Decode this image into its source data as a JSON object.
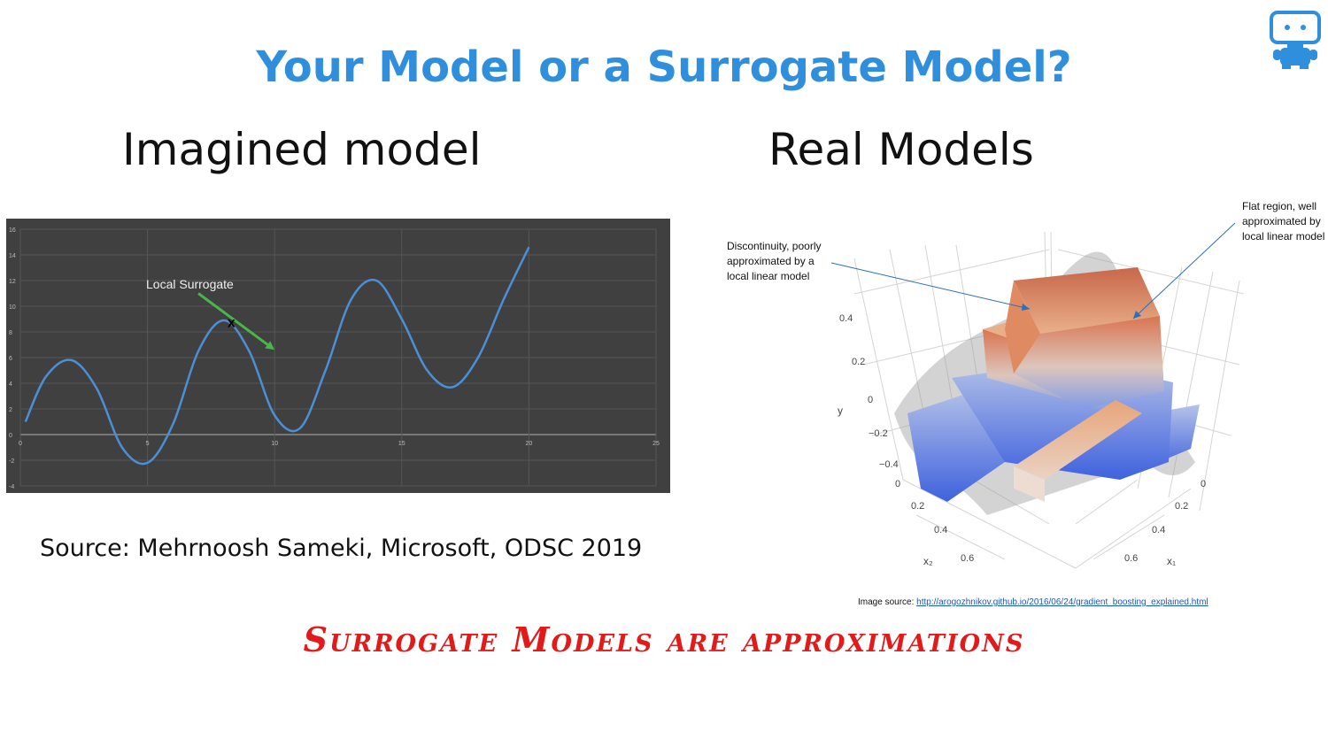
{
  "slide": {
    "title": "Your Model or a Surrogate Model?",
    "left_heading": "Imagined model",
    "right_heading": "Real Models",
    "left_source": "Source: Mehrnoosh Sameki, Microsoft, ODSC 2019",
    "image_source_label": "Image source: ",
    "image_source_url": "http://arogozhnikov.github.io/2016/06/24/gradient_boosting_explained.html",
    "tagline": "Surrogate Models are approximations",
    "logo_icon": "robot-icon",
    "accent_color": "#2f8fdc",
    "tagline_color": "#e21a1a"
  },
  "chart_data": [
    {
      "type": "line",
      "x_ticks": [
        "0",
        "5",
        "10",
        "15",
        "20",
        "25"
      ],
      "y_ticks": [
        "-4",
        "-2",
        "0",
        "2",
        "4",
        "6",
        "8",
        "10",
        "12",
        "14",
        "16"
      ],
      "xlim": [
        0,
        25
      ],
      "ylim": [
        -4,
        16
      ],
      "series": [
        {
          "x": [
            0.2,
            1.0,
            2.0,
            3.0,
            4.0,
            5.0,
            6.0,
            7.0,
            8.0,
            9.0,
            10.0,
            11.0,
            12.0,
            13.0,
            14.0,
            15.0,
            16.0,
            17.0,
            18.0,
            19.0,
            20.0
          ],
          "values": [
            1.0,
            4.5,
            5.8,
            3.6,
            -1.0,
            -2.2,
            0.8,
            6.5,
            8.9,
            6.5,
            1.5,
            0.5,
            5.0,
            10.5,
            12.0,
            9.0,
            5.0,
            3.7,
            6.0,
            10.5,
            14.6
          ]
        }
      ],
      "annotation": "Local Surrogate",
      "marker": {
        "x": 8.3,
        "y": 8.8,
        "label": "x"
      },
      "surrogate_arrow": {
        "from": [
          7.0,
          11.0
        ],
        "to": [
          10.0,
          6.6
        ],
        "color": "#49b54a"
      },
      "grid": true,
      "background": "#404040",
      "line_color": "#4b8fd6"
    },
    {
      "type": "surface-3d",
      "z_axis_label": "y",
      "z_ticks": [
        "0.4",
        "0.2",
        "0",
        "−0.2",
        "−0.4"
      ],
      "x1_axis_label": "x₁",
      "x1_ticks": [
        "0",
        "0.2",
        "0.4",
        "0.6"
      ],
      "x2_axis_label": "x₂",
      "x2_ticks": [
        "0",
        "0.2",
        "0.4",
        "0.6"
      ],
      "annotations": [
        "Discontinuity, poorly approximated by a local linear model",
        "Flat region, well approximated by local linear model"
      ],
      "colors": {
        "high": "#d86a4a",
        "mid": "#e8a57a",
        "low": "#4a6ee0",
        "surface": "#b9b9b9"
      }
    }
  ]
}
